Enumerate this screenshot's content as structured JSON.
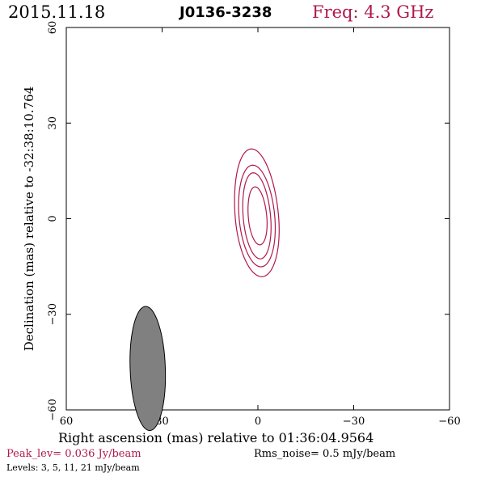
{
  "header": {
    "date": "2015.11.18",
    "source": "J0136-3238",
    "frequency": "Freq: 4.3 GHz",
    "frequency_color": "#b0194a"
  },
  "footer": {
    "peak": "Peak_lev=  0.036 Jy/beam",
    "rms": "Rms_noise=  0.5 mJy/beam",
    "levels": "Levels:   3,   5,  11,  21 mJy/beam"
  },
  "chart_data": {
    "type": "contour",
    "xlabel": "Right ascension (mas) relative to 01:36:04.9564",
    "ylabel": "Declination (mas) relative to -32:38:10.764",
    "xlim": [
      60,
      -60
    ],
    "ylim": [
      -60,
      60
    ],
    "x_ticks": [
      "60",
      "30",
      "0",
      "−30",
      "−60"
    ],
    "y_ticks": [
      "−60",
      "−30",
      "0",
      "30",
      "60"
    ],
    "x_tick_values": [
      60,
      30,
      0,
      -30,
      -60
    ],
    "y_tick_values": [
      -60,
      -30,
      0,
      30,
      60
    ],
    "contour_color": "#b0194a",
    "contour_levels_mJy": [
      3,
      5,
      11,
      21
    ],
    "contours": [
      {
        "level": 3,
        "center": [
          0.3,
          0.4
        ],
        "half_width_ra": 6.8,
        "north_extent": 21.5,
        "south_extent": 18.6
      },
      {
        "level": 5,
        "center": [
          0.3,
          0.4
        ],
        "half_width_ra": 5.6,
        "north_extent": 16.4,
        "south_extent": 15.5
      },
      {
        "level": 11,
        "center": [
          0.3,
          0.4
        ],
        "half_width_ra": 4.3,
        "north_extent": 14.0,
        "south_extent": 13.0
      },
      {
        "level": 21,
        "center": [
          0.1,
          0.4
        ],
        "half_width_ra": 2.9,
        "north_extent": 9.6,
        "south_extent": 8.6
      }
    ],
    "beam": {
      "ra": 34.5,
      "dec": -47.0,
      "major_axis": 20.0,
      "minor_axis": 5.8,
      "pa_deg": 2,
      "fill": "#808080"
    }
  }
}
